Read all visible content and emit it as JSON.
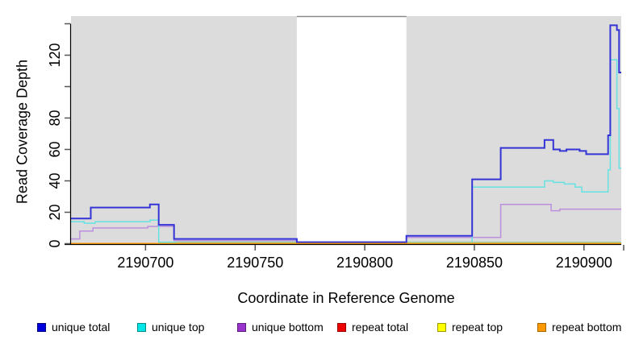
{
  "chart_data": {
    "type": "line",
    "title": "",
    "xlabel": "Coordinate in Reference Genome",
    "ylabel": "Read Coverage Depth",
    "xlim": [
      2190666,
      2190917
    ],
    "ylim": [
      0,
      145
    ],
    "grid": false,
    "legend_position": "bottom",
    "panel_background": "#dcdcdc",
    "uncovered_band": {
      "start": 2190769,
      "end": 2190819,
      "color": "#ffffff",
      "top_border_color": "#8a8a8a"
    },
    "x_ticks": [
      {
        "value": 2190700,
        "label": "2190700"
      },
      {
        "value": 2190750,
        "label": "2190750"
      },
      {
        "value": 2190800,
        "label": "2190800"
      },
      {
        "value": 2190850,
        "label": "2190850"
      },
      {
        "value": 2190900,
        "label": "2190900"
      }
    ],
    "x_end_tick": 2190917,
    "y_ticks": [
      {
        "value": 0,
        "label": "0"
      },
      {
        "value": 20,
        "label": "20"
      },
      {
        "value": 40,
        "label": "40"
      },
      {
        "value": 60,
        "label": "60"
      },
      {
        "value": 80,
        "label": "80"
      },
      {
        "value": 100,
        "label": ""
      },
      {
        "value": 120,
        "label": "120"
      },
      {
        "value": 140,
        "label": ""
      }
    ],
    "series": [
      {
        "name": "repeat total",
        "color": "#dd0000",
        "width": 1.5,
        "in_legend": true,
        "swatch_fill": "#ee0000",
        "swatch_border": "#990000",
        "points": [
          [
            2190666,
            0
          ],
          [
            2190917,
            0
          ]
        ]
      },
      {
        "name": "repeat top",
        "color": "#ffff00",
        "width": 1.5,
        "in_legend": true,
        "swatch_fill": "#ffff00",
        "swatch_border": "#9a9a00",
        "points": [
          [
            2190666,
            0
          ],
          [
            2190917,
            0
          ]
        ]
      },
      {
        "name": "unique bottom",
        "color": "#bb8fdd",
        "width": 1.5,
        "in_legend": true,
        "swatch_fill": "#9933cc",
        "swatch_border": "#5c1f7a",
        "points": [
          [
            2190666,
            3
          ],
          [
            2190670,
            8
          ],
          [
            2190676,
            10
          ],
          [
            2190701,
            11
          ],
          [
            2190713,
            2
          ],
          [
            2190769,
            1
          ],
          [
            2190819,
            4
          ],
          [
            2190862,
            25
          ],
          [
            2190885,
            21
          ],
          [
            2190889,
            22
          ],
          [
            2190917,
            22
          ]
        ]
      },
      {
        "name": "unique top",
        "color": "#66e2e2",
        "width": 1.5,
        "in_legend": true,
        "swatch_fill": "#00e5e5",
        "swatch_border": "#008b8b",
        "points": [
          [
            2190666,
            14
          ],
          [
            2190672,
            13
          ],
          [
            2190677,
            14
          ],
          [
            2190702,
            15
          ],
          [
            2190706,
            1
          ],
          [
            2190849,
            36
          ],
          [
            2190882,
            40
          ],
          [
            2190886,
            39
          ],
          [
            2190891,
            38
          ],
          [
            2190896,
            36
          ],
          [
            2190899,
            33
          ],
          [
            2190911,
            47
          ],
          [
            2190912,
            117
          ],
          [
            2190915,
            86
          ],
          [
            2190916,
            48
          ],
          [
            2190917,
            48
          ]
        ]
      },
      {
        "name": "overlap artifact",
        "color": "#9fce9f",
        "width": 1.5,
        "in_legend": false,
        "swatch_fill": "#9fce9f",
        "swatch_border": "#9fce9f",
        "points": [
          [
            2190714,
            1
          ],
          [
            2190849,
            1
          ]
        ]
      },
      {
        "name": "unique total",
        "color": "#3434d6",
        "width": 2,
        "in_legend": true,
        "swatch_fill": "#0000dd",
        "swatch_border": "#000080",
        "points": [
          [
            2190666,
            16
          ],
          [
            2190675,
            23
          ],
          [
            2190702,
            25
          ],
          [
            2190706,
            12
          ],
          [
            2190713,
            3
          ],
          [
            2190769,
            1
          ],
          [
            2190819,
            5
          ],
          [
            2190849,
            41
          ],
          [
            2190862,
            61
          ],
          [
            2190882,
            66
          ],
          [
            2190886,
            60
          ],
          [
            2190889,
            59
          ],
          [
            2190892,
            60
          ],
          [
            2190898,
            59
          ],
          [
            2190901,
            57
          ],
          [
            2190911,
            69
          ],
          [
            2190912,
            139
          ],
          [
            2190915,
            136
          ],
          [
            2190916,
            109
          ],
          [
            2190917,
            109
          ]
        ]
      },
      {
        "name": "repeat bottom",
        "color": "#ff9d00",
        "width": 2,
        "in_legend": true,
        "swatch_fill": "#ff9900",
        "swatch_border": "#a86400",
        "points": [
          [
            2190666,
            0
          ],
          [
            2190917,
            0
          ]
        ]
      }
    ]
  },
  "legend": {
    "labels": [
      "unique total",
      "unique top",
      "unique bottom",
      "repeat total",
      "repeat top",
      "repeat bottom"
    ]
  }
}
